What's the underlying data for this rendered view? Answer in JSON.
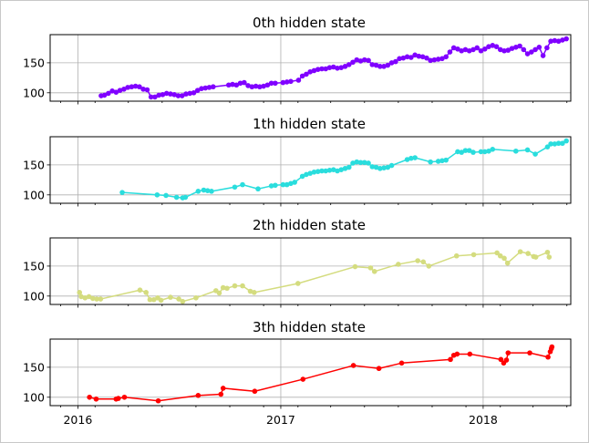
{
  "chart_data": {
    "type": "line",
    "xlim": [
      "2015-11-12",
      "2018-06-08"
    ],
    "ylim": [
      86,
      197
    ],
    "grid": true,
    "shared_x": true,
    "xticks": [
      "2016-01-01",
      "2017-01-01",
      "2018-01-01"
    ],
    "xtick_labels": [
      "2016",
      "2017",
      "2018"
    ],
    "yticks": [
      100,
      150
    ],
    "ytick_labels": [
      "100",
      "150"
    ],
    "panels": [
      {
        "title": "0th hidden state",
        "color": "#8000ff",
        "points": [
          [
            "2016-02-12",
            95
          ],
          [
            "2016-02-18",
            96
          ],
          [
            "2016-02-25",
            99
          ],
          [
            "2016-03-03",
            103
          ],
          [
            "2016-03-10",
            101
          ],
          [
            "2016-03-17",
            104
          ],
          [
            "2016-03-24",
            106
          ],
          [
            "2016-03-31",
            109
          ],
          [
            "2016-04-07",
            110
          ],
          [
            "2016-04-14",
            111
          ],
          [
            "2016-04-21",
            110
          ],
          [
            "2016-04-28",
            106
          ],
          [
            "2016-05-05",
            105
          ],
          [
            "2016-05-12",
            93
          ],
          [
            "2016-05-19",
            93
          ],
          [
            "2016-05-26",
            96
          ],
          [
            "2016-06-02",
            97
          ],
          [
            "2016-06-09",
            99
          ],
          [
            "2016-06-16",
            98
          ],
          [
            "2016-06-23",
            97
          ],
          [
            "2016-06-30",
            95
          ],
          [
            "2016-07-07",
            95
          ],
          [
            "2016-07-14",
            98
          ],
          [
            "2016-07-21",
            99
          ],
          [
            "2016-07-28",
            100
          ],
          [
            "2016-08-04",
            104
          ],
          [
            "2016-08-11",
            107
          ],
          [
            "2016-08-18",
            108
          ],
          [
            "2016-08-25",
            109
          ],
          [
            "2016-09-01",
            110
          ],
          [
            "2016-09-29",
            113
          ],
          [
            "2016-10-06",
            114
          ],
          [
            "2016-10-13",
            113
          ],
          [
            "2016-10-20",
            116
          ],
          [
            "2016-10-27",
            117
          ],
          [
            "2016-11-03",
            112
          ],
          [
            "2016-11-10",
            110
          ],
          [
            "2016-11-17",
            111
          ],
          [
            "2016-11-24",
            110
          ],
          [
            "2016-12-01",
            111
          ],
          [
            "2016-12-08",
            113
          ],
          [
            "2016-12-15",
            116
          ],
          [
            "2016-12-22",
            116
          ],
          [
            "2017-01-05",
            117
          ],
          [
            "2017-01-12",
            118
          ],
          [
            "2017-01-19",
            119
          ],
          [
            "2017-02-02",
            121
          ],
          [
            "2017-02-09",
            128
          ],
          [
            "2017-02-16",
            131
          ],
          [
            "2017-02-23",
            135
          ],
          [
            "2017-03-02",
            137
          ],
          [
            "2017-03-09",
            139
          ],
          [
            "2017-03-16",
            140
          ],
          [
            "2017-03-23",
            140
          ],
          [
            "2017-03-30",
            142
          ],
          [
            "2017-04-06",
            143
          ],
          [
            "2017-04-13",
            141
          ],
          [
            "2017-04-20",
            142
          ],
          [
            "2017-04-27",
            144
          ],
          [
            "2017-05-04",
            147
          ],
          [
            "2017-05-11",
            151
          ],
          [
            "2017-05-18",
            155
          ],
          [
            "2017-05-25",
            153
          ],
          [
            "2017-06-01",
            155
          ],
          [
            "2017-06-08",
            154
          ],
          [
            "2017-06-15",
            147
          ],
          [
            "2017-06-22",
            146
          ],
          [
            "2017-06-29",
            144
          ],
          [
            "2017-07-06",
            144
          ],
          [
            "2017-07-13",
            146
          ],
          [
            "2017-07-20",
            150
          ],
          [
            "2017-07-27",
            152
          ],
          [
            "2017-08-03",
            157
          ],
          [
            "2017-08-10",
            158
          ],
          [
            "2017-08-17",
            160
          ],
          [
            "2017-08-24",
            159
          ],
          [
            "2017-08-31",
            163
          ],
          [
            "2017-09-07",
            161
          ],
          [
            "2017-09-14",
            160
          ],
          [
            "2017-09-21",
            158
          ],
          [
            "2017-09-28",
            154
          ],
          [
            "2017-10-05",
            155
          ],
          [
            "2017-10-12",
            156
          ],
          [
            "2017-10-19",
            157
          ],
          [
            "2017-10-26",
            160
          ],
          [
            "2017-11-02",
            168
          ],
          [
            "2017-11-09",
            175
          ],
          [
            "2017-11-16",
            173
          ],
          [
            "2017-11-23",
            170
          ],
          [
            "2017-11-30",
            172
          ],
          [
            "2017-12-07",
            170
          ],
          [
            "2017-12-14",
            172
          ],
          [
            "2017-12-21",
            175
          ],
          [
            "2017-12-28",
            170
          ],
          [
            "2018-01-04",
            173
          ],
          [
            "2018-01-11",
            177
          ],
          [
            "2018-01-18",
            179
          ],
          [
            "2018-01-25",
            177
          ],
          [
            "2018-02-01",
            172
          ],
          [
            "2018-02-08",
            170
          ],
          [
            "2018-02-15",
            171
          ],
          [
            "2018-02-22",
            174
          ],
          [
            "2018-03-01",
            176
          ],
          [
            "2018-03-08",
            178
          ],
          [
            "2018-03-15",
            172
          ],
          [
            "2018-03-22",
            165
          ],
          [
            "2018-03-29",
            168
          ],
          [
            "2018-04-05",
            172
          ],
          [
            "2018-04-12",
            176
          ],
          [
            "2018-04-19",
            162
          ],
          [
            "2018-04-26",
            175
          ],
          [
            "2018-05-03",
            186
          ],
          [
            "2018-05-10",
            187
          ],
          [
            "2018-05-17",
            186
          ],
          [
            "2018-05-24",
            188
          ],
          [
            "2018-05-31",
            190
          ]
        ]
      },
      {
        "title": "1th hidden state",
        "color": "#2adddd",
        "points": [
          [
            "2016-03-21",
            104
          ],
          [
            "2016-05-23",
            100
          ],
          [
            "2016-06-08",
            99
          ],
          [
            "2016-06-27",
            96
          ],
          [
            "2016-07-08",
            95
          ],
          [
            "2016-07-13",
            96
          ],
          [
            "2016-08-05",
            106
          ],
          [
            "2016-08-15",
            108
          ],
          [
            "2016-08-22",
            107
          ],
          [
            "2016-08-29",
            106
          ],
          [
            "2016-10-10",
            113
          ],
          [
            "2016-10-24",
            117
          ],
          [
            "2016-11-21",
            110
          ],
          [
            "2016-12-15",
            115
          ],
          [
            "2016-12-22",
            116
          ],
          [
            "2017-01-05",
            117
          ],
          [
            "2017-01-12",
            117
          ],
          [
            "2017-01-19",
            119
          ],
          [
            "2017-01-26",
            121
          ],
          [
            "2017-02-09",
            131
          ],
          [
            "2017-02-16",
            134
          ],
          [
            "2017-02-23",
            136
          ],
          [
            "2017-03-02",
            138
          ],
          [
            "2017-03-09",
            139
          ],
          [
            "2017-03-16",
            140
          ],
          [
            "2017-03-23",
            140
          ],
          [
            "2017-03-30",
            141
          ],
          [
            "2017-04-06",
            142
          ],
          [
            "2017-04-13",
            140
          ],
          [
            "2017-04-20",
            142
          ],
          [
            "2017-04-27",
            144
          ],
          [
            "2017-05-04",
            146
          ],
          [
            "2017-05-11",
            153
          ],
          [
            "2017-05-18",
            155
          ],
          [
            "2017-05-25",
            154
          ],
          [
            "2017-06-01",
            154
          ],
          [
            "2017-06-08",
            153
          ],
          [
            "2017-06-15",
            147
          ],
          [
            "2017-06-22",
            146
          ],
          [
            "2017-06-29",
            144
          ],
          [
            "2017-07-06",
            145
          ],
          [
            "2017-07-13",
            146
          ],
          [
            "2017-07-20",
            149
          ],
          [
            "2017-08-17",
            159
          ],
          [
            "2017-08-24",
            161
          ],
          [
            "2017-08-31",
            162
          ],
          [
            "2017-09-28",
            155
          ],
          [
            "2017-10-12",
            156
          ],
          [
            "2017-10-19",
            157
          ],
          [
            "2017-10-26",
            158
          ],
          [
            "2017-11-16",
            172
          ],
          [
            "2017-11-23",
            171
          ],
          [
            "2017-11-30",
            174
          ],
          [
            "2017-12-07",
            174
          ],
          [
            "2017-12-14",
            171
          ],
          [
            "2017-12-28",
            172
          ],
          [
            "2018-01-04",
            172
          ],
          [
            "2018-01-11",
            173
          ],
          [
            "2018-01-18",
            176
          ],
          [
            "2018-03-01",
            173
          ],
          [
            "2018-03-22",
            175
          ],
          [
            "2018-04-05",
            168
          ],
          [
            "2018-04-27",
            180
          ],
          [
            "2018-05-03",
            185
          ],
          [
            "2018-05-10",
            185
          ],
          [
            "2018-05-17",
            186
          ],
          [
            "2018-05-24",
            186
          ],
          [
            "2018-05-31",
            190
          ]
        ]
      },
      {
        "title": "2th hidden state",
        "color": "#d4dc7f",
        "points": [
          [
            "2016-01-04",
            106
          ],
          [
            "2016-01-07",
            99
          ],
          [
            "2016-01-14",
            97
          ],
          [
            "2016-01-21",
            99
          ],
          [
            "2016-01-28",
            96
          ],
          [
            "2016-02-04",
            95
          ],
          [
            "2016-02-11",
            95
          ],
          [
            "2016-04-22",
            110
          ],
          [
            "2016-05-03",
            106
          ],
          [
            "2016-05-10",
            94
          ],
          [
            "2016-05-17",
            94
          ],
          [
            "2016-05-24",
            97
          ],
          [
            "2016-05-30",
            93
          ],
          [
            "2016-06-16",
            98
          ],
          [
            "2016-07-01",
            95
          ],
          [
            "2016-07-08",
            91
          ],
          [
            "2016-08-01",
            97
          ],
          [
            "2016-09-06",
            109
          ],
          [
            "2016-09-12",
            105
          ],
          [
            "2016-09-19",
            114
          ],
          [
            "2016-09-26",
            113
          ],
          [
            "2016-10-10",
            117
          ],
          [
            "2016-10-24",
            117
          ],
          [
            "2016-11-07",
            108
          ],
          [
            "2016-11-14",
            106
          ],
          [
            "2017-02-01",
            121
          ],
          [
            "2017-05-15",
            149
          ],
          [
            "2017-06-12",
            147
          ],
          [
            "2017-06-19",
            141
          ],
          [
            "2017-08-01",
            153
          ],
          [
            "2017-09-05",
            159
          ],
          [
            "2017-09-15",
            157
          ],
          [
            "2017-09-25",
            150
          ],
          [
            "2017-11-14",
            167
          ],
          [
            "2017-12-15",
            169
          ],
          [
            "2018-01-26",
            172
          ],
          [
            "2018-02-01",
            167
          ],
          [
            "2018-02-08",
            163
          ],
          [
            "2018-02-14",
            155
          ],
          [
            "2018-03-09",
            174
          ],
          [
            "2018-03-23",
            171
          ],
          [
            "2018-04-02",
            166
          ],
          [
            "2018-04-06",
            165
          ],
          [
            "2018-04-27",
            173
          ],
          [
            "2018-04-30",
            165
          ]
        ]
      },
      {
        "title": "3th hidden state",
        "color": "#ff0000",
        "points": [
          [
            "2016-01-22",
            100
          ],
          [
            "2016-02-03",
            97
          ],
          [
            "2016-03-10",
            97
          ],
          [
            "2016-03-14",
            98
          ],
          [
            "2016-03-25",
            100
          ],
          [
            "2016-05-25",
            94
          ],
          [
            "2016-08-05",
            103
          ],
          [
            "2016-09-15",
            105
          ],
          [
            "2016-09-19",
            115
          ],
          [
            "2016-11-15",
            110
          ],
          [
            "2017-02-10",
            130
          ],
          [
            "2017-05-12",
            153
          ],
          [
            "2017-06-27",
            148
          ],
          [
            "2017-08-07",
            157
          ],
          [
            "2017-11-03",
            163
          ],
          [
            "2017-11-09",
            170
          ],
          [
            "2017-11-15",
            172
          ],
          [
            "2017-12-08",
            172
          ],
          [
            "2018-02-02",
            163
          ],
          [
            "2018-02-07",
            157
          ],
          [
            "2018-02-12",
            162
          ],
          [
            "2018-02-15",
            174
          ],
          [
            "2018-03-26",
            174
          ],
          [
            "2018-04-28",
            167
          ],
          [
            "2018-05-02",
            176
          ],
          [
            "2018-05-04",
            181
          ],
          [
            "2018-05-05",
            184
          ]
        ]
      }
    ]
  }
}
